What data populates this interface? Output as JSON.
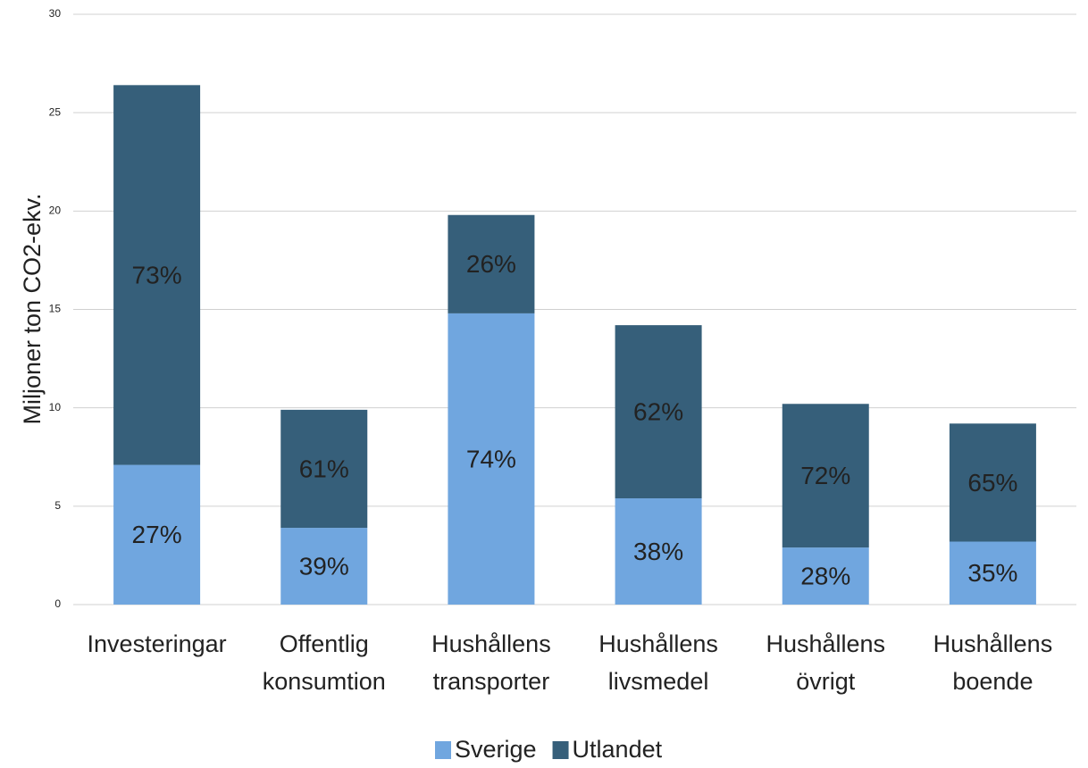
{
  "chart_data": {
    "type": "stacked_bar",
    "y_label": "Miljoner ton CO2-ekv.",
    "categories": [
      [
        "Investeringar"
      ],
      [
        "Offentlig",
        "konsumtion"
      ],
      [
        "Hushållens",
        "transporter"
      ],
      [
        "Hushållens",
        "livsmedel"
      ],
      [
        "Hushållens",
        "övrigt"
      ],
      [
        "Hushållens",
        "boende"
      ]
    ],
    "series": [
      {
        "name": "Sverige",
        "color": "#70a6df",
        "values": [
          7.1,
          3.9,
          14.8,
          5.4,
          2.9,
          3.2
        ],
        "labels": [
          "27%",
          "39%",
          "74%",
          "38%",
          "28%",
          "35%"
        ]
      },
      {
        "name": "Utlandet",
        "color": "#365f7a",
        "values": [
          19.3,
          6.0,
          5.0,
          8.8,
          7.3,
          6.0
        ],
        "labels": [
          "73%",
          "61%",
          "26%",
          "62%",
          "72%",
          "65%"
        ]
      }
    ],
    "ylim": [
      0,
      30
    ],
    "yticks": [
      0,
      5,
      10,
      15,
      20,
      25,
      30
    ],
    "grid": true,
    "legend": "bottom"
  }
}
